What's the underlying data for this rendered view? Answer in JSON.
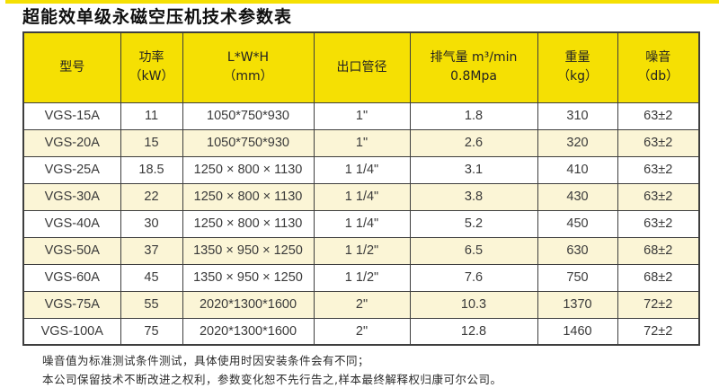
{
  "page": {
    "title": "超能效单级永磁空压机技术参数表"
  },
  "colors": {
    "header_yellow": "#f5e003",
    "top_strip_yellow": "#f5e003",
    "row_alt_cream": "#fbf5d6",
    "row_white": "#ffffff",
    "border_dark": "#3e3e3e"
  },
  "table": {
    "columns": [
      {
        "line1": "型号",
        "line2": ""
      },
      {
        "line1": "功率",
        "line2": "（kW）"
      },
      {
        "line1": "L*W*H",
        "line2": "（mm）"
      },
      {
        "line1": "出口管径",
        "line2": ""
      },
      {
        "line1": "排气量 m³/min",
        "line2": "0.8Mpa"
      },
      {
        "line1": "重量",
        "line2": "（kg）"
      },
      {
        "line1": "噪音",
        "line2": "（db）"
      }
    ],
    "rows": [
      [
        "VGS-15A",
        "11",
        "1050*750*930",
        "1\"",
        "1.8",
        "310",
        "63±2"
      ],
      [
        "VGS-20A",
        "15",
        "1050*750*930",
        "1\"",
        "2.6",
        "320",
        "63±2"
      ],
      [
        "VGS-25A",
        "18.5",
        "1250 × 800 × 1130",
        "1 1/4\"",
        "3.1",
        "410",
        "63±2"
      ],
      [
        "VGS-30A",
        "22",
        "1250 × 800 × 1130",
        "1 1/4\"",
        "3.8",
        "430",
        "63±2"
      ],
      [
        "VGS-40A",
        "30",
        "1250 × 800 × 1130",
        "1 1/4\"",
        "5.2",
        "450",
        "63±2"
      ],
      [
        "VGS-50A",
        "37",
        "1350 × 950 × 1250",
        "1 1/2\"",
        "6.5",
        "630",
        "68±2"
      ],
      [
        "VGS-60A",
        "45",
        "1350 × 950 × 1250",
        "1 1/2\"",
        "7.6",
        "750",
        "68±2"
      ],
      [
        "VGS-75A",
        "55",
        "2020*1300*1600",
        "2\"",
        "10.3",
        "1370",
        "72±2"
      ],
      [
        "VGS-100A",
        "75",
        "2020*1300*1600",
        "2\"",
        "12.8",
        "1460",
        "72±2"
      ]
    ]
  },
  "notes": [
    "噪音值为标准测试条件测试，具体使用时因安装条件会有不同；",
    "本公司保留技术不断改进之权利，参数变化恕不先行告之,样本最终解释权归康可尔公司。"
  ]
}
